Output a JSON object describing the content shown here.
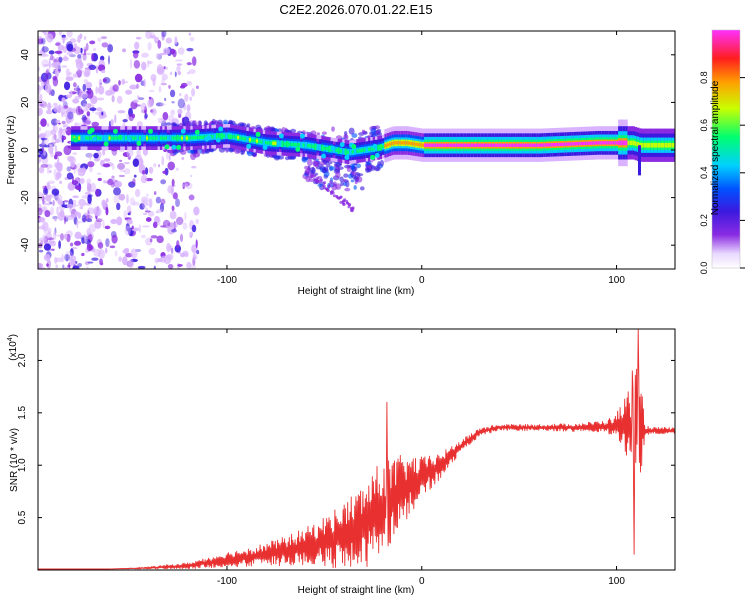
{
  "title": "C2E2.2026.070.01.22.E15",
  "colors": {
    "snr_line": "#e83030",
    "axis": "#000000",
    "colormap": [
      "#ffffff",
      "#d9b3ff",
      "#8a2be2",
      "#3a1ae0",
      "#0050ff",
      "#00d0ff",
      "#00ff70",
      "#c8ff00",
      "#ffa000",
      "#ff1e1e",
      "#ff30ff"
    ]
  },
  "chart_data": [
    {
      "type": "heatmap",
      "name": "spectrogram",
      "xlabel": "Height of straight line (km)",
      "ylabel": "Frequency (Hz)",
      "xlim": [
        -197,
        130
      ],
      "ylim": [
        -50,
        50
      ],
      "xticks": [
        -100,
        0,
        100
      ],
      "xtick_labels": [
        "-100",
        "0",
        "100"
      ],
      "yticks": [
        -40,
        -20,
        0,
        20,
        40
      ],
      "ytick_labels": [
        "-40",
        "-20",
        "0",
        "20",
        "40"
      ],
      "band_center_hz": [
        [
          -175,
          5
        ],
        [
          -150,
          5
        ],
        [
          -120,
          5
        ],
        [
          -100,
          6
        ],
        [
          -80,
          3
        ],
        [
          -60,
          2
        ],
        [
          -45,
          0
        ],
        [
          -38,
          -1
        ],
        [
          -30,
          0
        ],
        [
          -22,
          1
        ],
        [
          -15,
          3
        ],
        [
          -8,
          3
        ],
        [
          0,
          2
        ],
        [
          20,
          2
        ],
        [
          60,
          2
        ],
        [
          90,
          3
        ],
        [
          108,
          3
        ],
        [
          112,
          2
        ],
        [
          130,
          2
        ]
      ],
      "colorbar": {
        "label": "Normalized spectral amplitude",
        "range": [
          0,
          1
        ],
        "ticks": [
          0.0,
          0.2,
          0.4,
          0.6,
          0.8
        ],
        "tick_labels": [
          "0.0",
          "0.2",
          "0.4",
          "0.6",
          "0.8"
        ]
      }
    },
    {
      "type": "line",
      "name": "snr",
      "xlabel": "Height of straight line (km)",
      "ylabel": "SNR (10 * v/v)",
      "y_multiplier": "(x10",
      "y_multiplier_exp": "4",
      "y_multiplier_close": ")",
      "xlim": [
        -197,
        130
      ],
      "ylim": [
        0,
        2.3
      ],
      "xticks": [
        -100,
        0,
        100
      ],
      "xtick_labels": [
        "-100",
        "0",
        "100"
      ],
      "yticks": [
        0.5,
        1.0,
        1.5,
        2.0
      ],
      "ytick_labels": [
        "0.5",
        "1.0",
        "1.5",
        "2.0"
      ],
      "envelope": {
        "x": [
          -197,
          -160,
          -140,
          -120,
          -110,
          -100,
          -90,
          -80,
          -70,
          -60,
          -50,
          -40,
          -30,
          -25,
          -20,
          -15,
          -10,
          -5,
          0,
          10,
          20,
          30,
          40,
          60,
          80,
          95,
          100,
          105,
          108,
          110,
          112,
          115,
          120,
          130
        ],
        "mean": [
          0.01,
          0.01,
          0.02,
          0.04,
          0.07,
          0.1,
          0.12,
          0.15,
          0.18,
          0.22,
          0.27,
          0.33,
          0.42,
          0.5,
          0.58,
          0.65,
          0.75,
          0.82,
          0.88,
          1.0,
          1.18,
          1.32,
          1.36,
          1.36,
          1.36,
          1.37,
          1.38,
          1.38,
          1.35,
          1.34,
          1.34,
          1.33,
          1.33,
          1.33
        ],
        "spread": [
          0.0,
          0.0,
          0.01,
          0.03,
          0.05,
          0.07,
          0.09,
          0.11,
          0.14,
          0.18,
          0.24,
          0.32,
          0.4,
          0.45,
          0.48,
          0.42,
          0.35,
          0.28,
          0.2,
          0.12,
          0.06,
          0.04,
          0.03,
          0.03,
          0.04,
          0.06,
          0.12,
          0.3,
          0.5,
          0.65,
          0.5,
          0.05,
          0.03,
          0.03
        ]
      },
      "peaks": [
        [
          -18,
          1.6
        ],
        [
          111,
          2.3
        ],
        [
          108,
          1.9
        ],
        [
          109,
          0.15
        ]
      ]
    }
  ]
}
